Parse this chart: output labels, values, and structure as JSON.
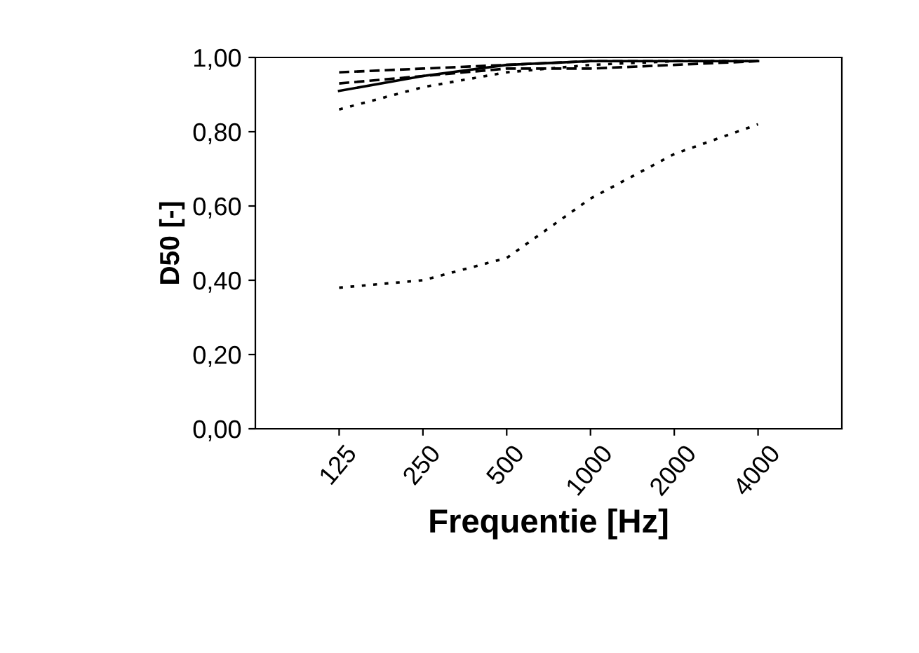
{
  "chart_data": {
    "type": "line",
    "xlabel": "Frequentie [Hz]",
    "ylabel": "D50 [-]",
    "categories": [
      "125",
      "250",
      "500",
      "1000",
      "2000",
      "4000"
    ],
    "ylim": [
      0,
      1
    ],
    "yticks": [
      {
        "value": 0,
        "label": "0,00"
      },
      {
        "value": 0.2,
        "label": "0,20"
      },
      {
        "value": 0.4,
        "label": "0,40"
      },
      {
        "value": 0.6,
        "label": "0,60"
      },
      {
        "value": 0.8,
        "label": "0,80"
      },
      {
        "value": 1,
        "label": "1,00"
      }
    ],
    "grid": false,
    "legend": false,
    "marker": "none",
    "series": [
      {
        "color": "#000000",
        "line_style": "dashed",
        "values": [
          0.96,
          0.97,
          0.98,
          0.99,
          0.99,
          0.99
        ]
      },
      {
        "color": "#000000",
        "line_style": "solid",
        "values": [
          0.91,
          0.95,
          0.98,
          0.99,
          0.99,
          0.99
        ]
      },
      {
        "color": "#000000",
        "line_style": "dashed",
        "values": [
          0.93,
          0.95,
          0.97,
          0.97,
          0.98,
          0.99
        ]
      },
      {
        "color": "#000000",
        "line_style": "dotted",
        "values": [
          0.86,
          0.92,
          0.96,
          0.98,
          0.99,
          0.99
        ]
      },
      {
        "color": "#000000",
        "line_style": "dotted",
        "values": [
          0.38,
          0.4,
          0.46,
          0.62,
          0.74,
          0.82
        ]
      }
    ]
  }
}
